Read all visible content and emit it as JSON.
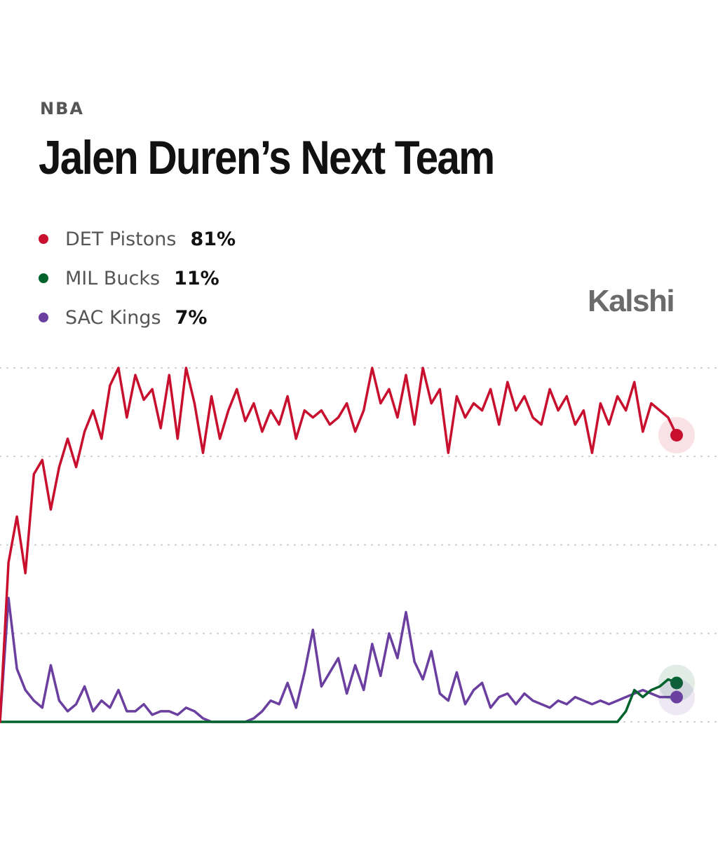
{
  "header": {
    "category": "NBA",
    "title": "Jalen Duren’s Next Team",
    "brand": "Kalshi"
  },
  "legend": [
    {
      "name": "DET Pistons",
      "value": "81%",
      "color": "#c8102e"
    },
    {
      "name": "MIL Bucks",
      "value": "11%",
      "color": "#00632c"
    },
    {
      "name": "SAC Kings",
      "value": "7%",
      "color": "#6b3fa0"
    }
  ],
  "chart_data": {
    "type": "line",
    "title": "",
    "xlabel": "",
    "ylabel": "",
    "ylim": [
      0,
      100
    ],
    "grid": true,
    "x": [
      0,
      1,
      2,
      3,
      4,
      5,
      6,
      7,
      8,
      9,
      10,
      11,
      12,
      13,
      14,
      15,
      16,
      17,
      18,
      19,
      20,
      21,
      22,
      23,
      24,
      25,
      26,
      27,
      28,
      29,
      30,
      31,
      32,
      33,
      34,
      35,
      36,
      37,
      38,
      39,
      40,
      41,
      42,
      43,
      44,
      45,
      46,
      47,
      48,
      49,
      50,
      51,
      52,
      53,
      54,
      55,
      56,
      57,
      58,
      59,
      60,
      61,
      62,
      63,
      64,
      65,
      66,
      67,
      68,
      69,
      70,
      71,
      72,
      73,
      74,
      75,
      76,
      77,
      78,
      79,
      80
    ],
    "series": [
      {
        "name": "DET Pistons",
        "color": "#c8102e",
        "values": [
          0,
          45,
          58,
          42,
          70,
          74,
          60,
          72,
          80,
          72,
          82,
          88,
          80,
          95,
          100,
          86,
          98,
          91,
          94,
          83,
          98,
          80,
          100,
          90,
          76,
          92,
          80,
          88,
          94,
          85,
          90,
          82,
          88,
          84,
          92,
          80,
          88,
          86,
          88,
          84,
          86,
          90,
          82,
          88,
          100,
          90,
          94,
          86,
          98,
          84,
          100,
          90,
          94,
          76,
          92,
          86,
          90,
          88,
          94,
          84,
          96,
          88,
          92,
          86,
          84,
          94,
          88,
          92,
          84,
          88,
          76,
          90,
          84,
          92,
          88,
          96,
          82,
          90,
          88,
          86,
          81
        ]
      },
      {
        "name": "MIL Bucks",
        "color": "#00632c",
        "values": [
          0,
          0,
          0,
          0,
          0,
          0,
          0,
          0,
          0,
          0,
          0,
          0,
          0,
          0,
          0,
          0,
          0,
          0,
          0,
          0,
          0,
          0,
          0,
          0,
          0,
          0,
          0,
          0,
          0,
          0,
          0,
          0,
          0,
          0,
          0,
          0,
          0,
          0,
          0,
          0,
          0,
          0,
          0,
          0,
          0,
          0,
          0,
          0,
          0,
          0,
          0,
          0,
          0,
          0,
          0,
          0,
          0,
          0,
          0,
          0,
          0,
          0,
          0,
          0,
          0,
          0,
          0,
          0,
          0,
          0,
          0,
          0,
          0,
          0,
          3,
          9,
          7,
          9,
          10,
          12,
          11
        ]
      },
      {
        "name": "SAC Kings",
        "color": "#6b3fa0",
        "values": [
          0,
          35,
          15,
          9,
          6,
          4,
          16,
          6,
          3,
          5,
          10,
          3,
          6,
          4,
          9,
          3,
          3,
          5,
          2,
          3,
          3,
          2,
          4,
          3,
          1,
          0,
          0,
          0,
          0,
          0,
          1,
          3,
          6,
          5,
          11,
          4,
          14,
          26,
          10,
          14,
          18,
          8,
          16,
          9,
          22,
          13,
          25,
          18,
          31,
          17,
          12,
          20,
          8,
          6,
          14,
          5,
          9,
          11,
          4,
          7,
          8,
          5,
          8,
          6,
          5,
          4,
          6,
          5,
          7,
          6,
          5,
          6,
          5,
          6,
          7,
          8,
          9,
          8,
          7,
          7,
          7
        ]
      }
    ]
  }
}
